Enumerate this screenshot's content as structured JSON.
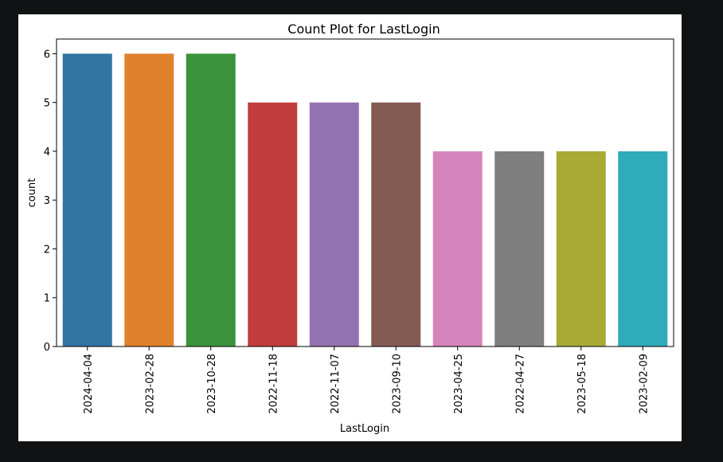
{
  "chart_data": {
    "type": "bar",
    "title": "Count Plot for LastLogin",
    "xlabel": "LastLogin",
    "ylabel": "count",
    "categories": [
      "2024-04-04",
      "2023-02-28",
      "2023-10-28",
      "2022-11-18",
      "2022-11-07",
      "2023-09-10",
      "2023-04-25",
      "2022-04-27",
      "2023-05-18",
      "2023-02-09"
    ],
    "values": [
      6,
      6,
      6,
      5,
      5,
      5,
      4,
      4,
      4,
      4
    ],
    "colors": [
      "#3274a1",
      "#e1812c",
      "#3a923a",
      "#c03d3e",
      "#9372b2",
      "#845b53",
      "#d684bd",
      "#7f7f7f",
      "#a9aa35",
      "#2fabb9"
    ],
    "ylim": [
      0,
      6.3
    ],
    "yticks": [
      0,
      1,
      2,
      3,
      4,
      5,
      6
    ],
    "grid": false,
    "legend": "none"
  }
}
